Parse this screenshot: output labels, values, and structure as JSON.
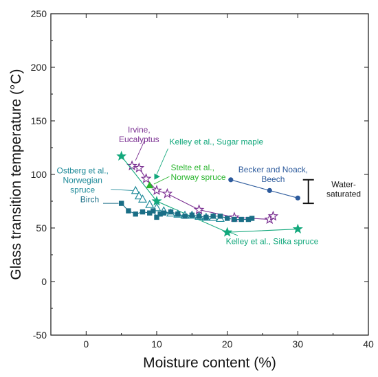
{
  "chart_data": {
    "type": "scatter",
    "xlabel": "Moisture content (%)",
    "ylabel": "Glass transition temperature (°C)",
    "xlim": [
      -5,
      40
    ],
    "ylim": [
      -50,
      250
    ],
    "xticks": [
      0,
      10,
      20,
      30,
      40
    ],
    "yticks": [
      -50,
      0,
      50,
      100,
      150,
      200,
      250
    ],
    "grid": false,
    "legend": "none",
    "series": [
      {
        "color": "#7a2f91",
        "marker": "open-star",
        "line": true,
        "x": [
          6.5,
          7.5,
          8.5,
          10,
          11.5,
          16,
          21,
          26,
          26.5
        ],
        "y": [
          108,
          106,
          96,
          85,
          82,
          67,
          60,
          58,
          61
        ]
      },
      {
        "color": "#13a87c",
        "marker": "filled-star",
        "line": true,
        "x": [
          5,
          10,
          20,
          30
        ],
        "y": [
          117,
          75,
          46,
          49
        ]
      },
      {
        "color": "#1f8a99",
        "marker": "open-triangle",
        "line": false,
        "x": [
          7,
          7.5,
          8,
          9,
          10,
          11,
          12,
          13,
          14,
          15,
          16,
          17,
          18,
          19
        ],
        "y": [
          85,
          80,
          77,
          72,
          69,
          66,
          64,
          63,
          62,
          62,
          61,
          60,
          60,
          59
        ]
      },
      {
        "color": "#1a6e86",
        "marker": "filled-square",
        "line": true,
        "x": [
          5,
          6,
          7,
          8,
          9,
          9.5,
          10,
          10.5,
          11,
          12,
          13,
          14,
          15,
          16,
          17,
          18,
          19,
          20,
          21,
          22,
          23,
          23.5
        ],
        "y": [
          73,
          66,
          63,
          65,
          64,
          66,
          60,
          63,
          64,
          65,
          63,
          61,
          62,
          61,
          60,
          61,
          61,
          59,
          58,
          58,
          58,
          59
        ]
      },
      {
        "color": "#2c5a9c",
        "marker": "filled-circle",
        "line": true,
        "x": [
          20.5,
          26,
          30
        ],
        "y": [
          95,
          85,
          78
        ]
      },
      {
        "color": "#2ab52e",
        "marker": "filled-triangle",
        "line": false,
        "x": [
          9
        ],
        "y": [
          90
        ]
      },
      {
        "color": "#13a87c",
        "marker": "right-triangle",
        "line": false,
        "x": [
          10
        ],
        "y": [
          98
        ]
      }
    ],
    "annotations": [
      {
        "lines": [
          "Irvine,",
          "Eucalyptus"
        ],
        "color": "#7a2f91",
        "x": 7.5,
        "y": 139,
        "anchor": "middle"
      },
      {
        "lines": [
          "Kelley et al., Sugar maple"
        ],
        "color": "#13a87c",
        "x": 11.8,
        "y": 128,
        "anchor": "start"
      },
      {
        "lines": [
          "Stelte et al.,",
          "Norway spruce"
        ],
        "color": "#2ab52e",
        "x": 12,
        "y": 104,
        "anchor": "start"
      },
      {
        "lines": [
          "Ostberg et al.,",
          "Norwegian",
          "spruce"
        ],
        "color": "#1f8a99",
        "x": -0.5,
        "y": 101,
        "anchor": "middle"
      },
      {
        "lines": [
          "Birch"
        ],
        "color": "#1a6e86",
        "x": 0.5,
        "y": 74,
        "anchor": "middle"
      },
      {
        "lines": [
          "Becker and Noack,",
          "Beech"
        ],
        "color": "#2c5a9c",
        "x": 26.5,
        "y": 102,
        "anchor": "middle"
      },
      {
        "lines": [
          "Water-",
          "saturated"
        ],
        "color": "#111111",
        "x": 36.5,
        "y": 88,
        "anchor": "middle"
      },
      {
        "lines": [
          "Kelley et al., Sitka spruce"
        ],
        "color": "#13a87c",
        "x": 19.8,
        "y": 35,
        "anchor": "start"
      }
    ],
    "range_bar": {
      "x": 31.5,
      "y_low": 73,
      "y_high": 95,
      "color": "#111111"
    }
  }
}
